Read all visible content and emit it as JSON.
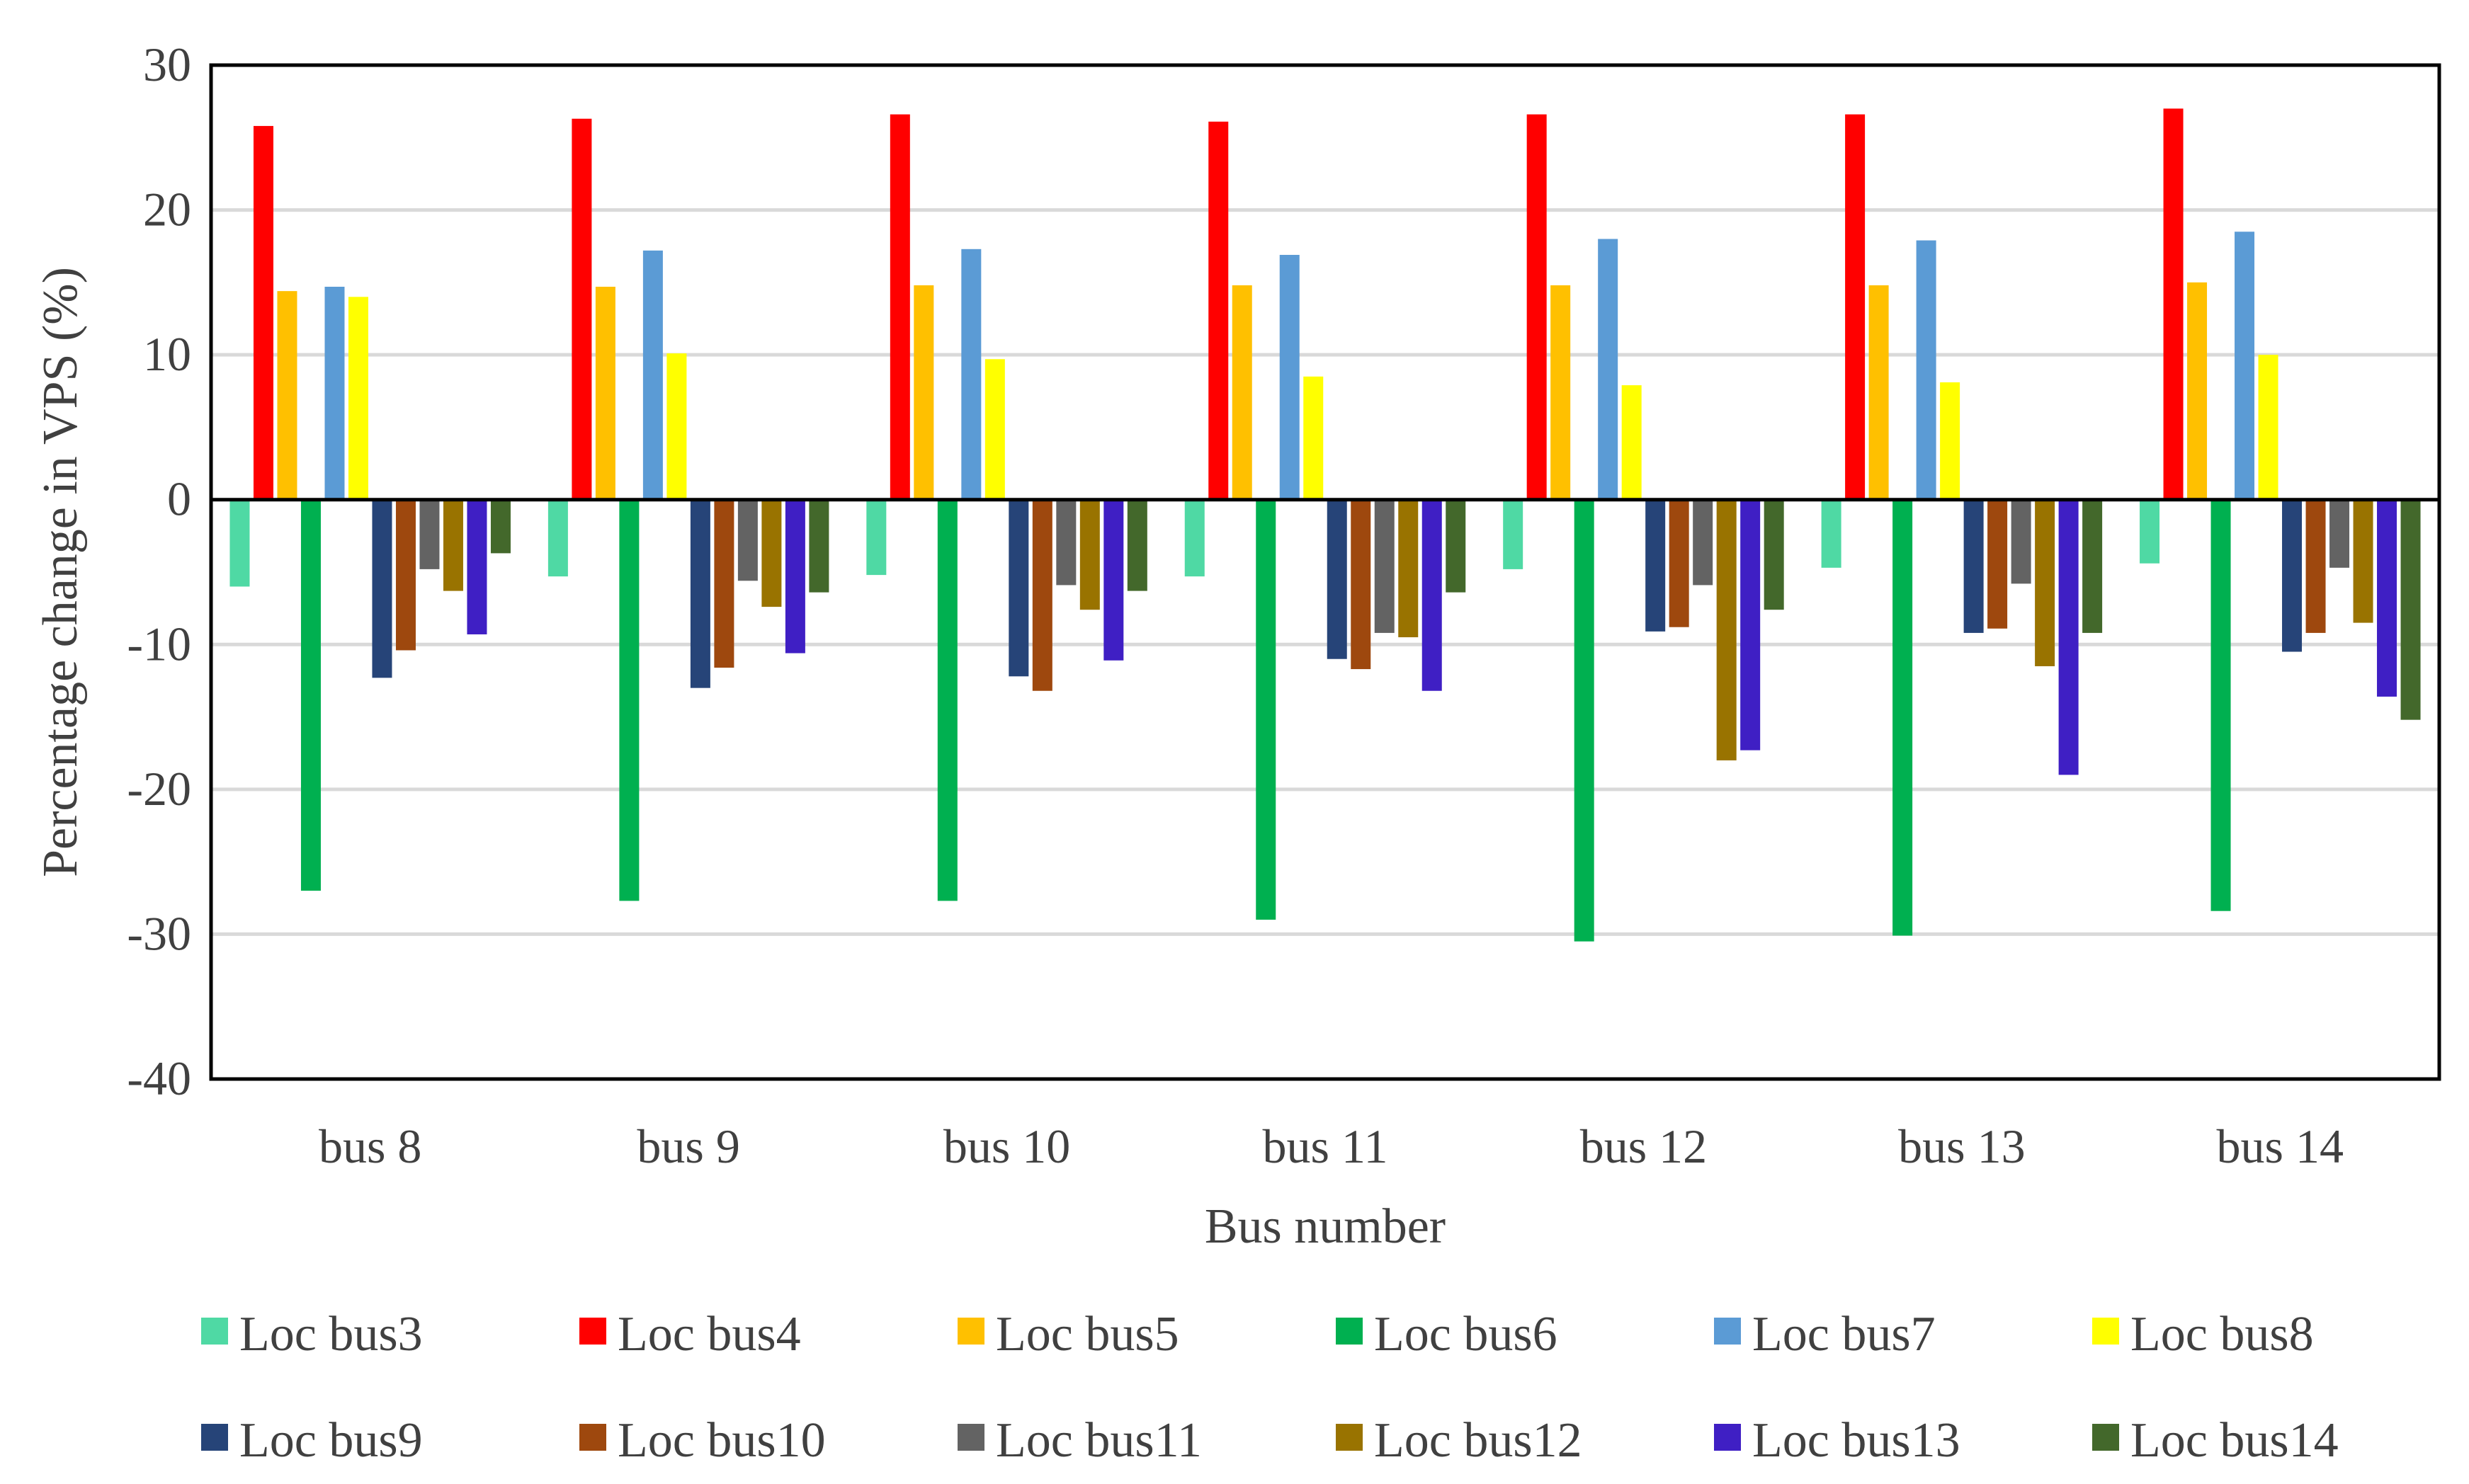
{
  "chart_data": {
    "type": "bar",
    "title": "",
    "xlabel": "Bus number",
    "ylabel": "Percentage change in VPS (%)",
    "ylim": [
      -40,
      30
    ],
    "yticks": [
      30,
      20,
      10,
      0,
      -10,
      -20,
      -30,
      -40
    ],
    "grid": true,
    "legend_position": "bottom",
    "categories": [
      "bus 8",
      "bus 9",
      "bus 10",
      "bus 11",
      "bus 12",
      "bus 13",
      "bus 14"
    ],
    "series": [
      {
        "name": "Loc bus3",
        "color": "#4FD9A4",
        "values": [
          -6.0,
          -5.3,
          -5.2,
          -5.3,
          -4.8,
          -4.7,
          -4.4
        ]
      },
      {
        "name": "Loc bus4",
        "color": "#FF0000",
        "values": [
          25.8,
          26.3,
          26.6,
          26.1,
          26.6,
          26.6,
          27.0
        ]
      },
      {
        "name": "Loc bus5",
        "color": "#FFC000",
        "values": [
          14.4,
          14.7,
          14.8,
          14.8,
          14.8,
          14.8,
          15.0
        ]
      },
      {
        "name": "Loc bus6",
        "color": "#00B050",
        "values": [
          -27.0,
          -27.7,
          -27.7,
          -29.0,
          -30.5,
          -30.1,
          -28.4
        ]
      },
      {
        "name": "Loc bus7",
        "color": "#5B9BD5",
        "values": [
          14.7,
          17.2,
          17.3,
          16.9,
          18.0,
          17.9,
          18.5
        ]
      },
      {
        "name": "Loc bus8",
        "color": "#FFFF00",
        "values": [
          14.0,
          10.1,
          9.7,
          8.5,
          7.9,
          8.1,
          10.0
        ]
      },
      {
        "name": "Loc bus9",
        "color": "#264478",
        "values": [
          -12.3,
          -13.0,
          -12.2,
          -11.0,
          -9.1,
          -9.2,
          -10.5
        ]
      },
      {
        "name": "Loc bus10",
        "color": "#9E480E",
        "values": [
          -10.4,
          -11.6,
          -13.2,
          -11.7,
          -8.8,
          -8.9,
          -9.2
        ]
      },
      {
        "name": "Loc bus11",
        "color": "#636363",
        "values": [
          -4.8,
          -5.6,
          -5.9,
          -9.2,
          -5.9,
          -5.8,
          -4.7
        ]
      },
      {
        "name": "Loc bus12",
        "color": "#997300",
        "values": [
          -6.3,
          -7.4,
          -7.6,
          -9.5,
          -18.0,
          -11.5,
          -8.5
        ]
      },
      {
        "name": "Loc bus13",
        "color": "#3F1FC4",
        "values": [
          -9.3,
          -10.6,
          -11.1,
          -13.2,
          -17.3,
          -19.0,
          -13.6
        ]
      },
      {
        "name": "Loc bus14",
        "color": "#43682B",
        "values": [
          -3.7,
          -6.4,
          -6.3,
          -6.4,
          -7.6,
          -9.2,
          -15.2
        ]
      }
    ]
  }
}
